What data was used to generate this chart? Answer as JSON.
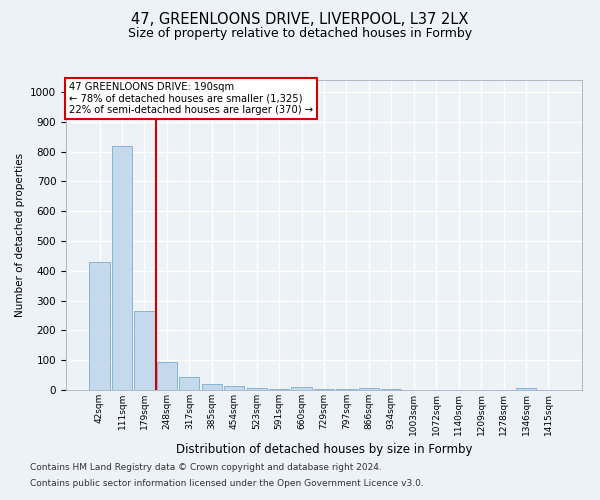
{
  "title_line1": "47, GREENLOONS DRIVE, LIVERPOOL, L37 2LX",
  "title_line2": "Size of property relative to detached houses in Formby",
  "xlabel": "Distribution of detached houses by size in Formby",
  "ylabel": "Number of detached properties",
  "categories": [
    "42sqm",
    "111sqm",
    "179sqm",
    "248sqm",
    "317sqm",
    "385sqm",
    "454sqm",
    "523sqm",
    "591sqm",
    "660sqm",
    "729sqm",
    "797sqm",
    "866sqm",
    "934sqm",
    "1003sqm",
    "1072sqm",
    "1140sqm",
    "1209sqm",
    "1278sqm",
    "1346sqm",
    "1415sqm"
  ],
  "values": [
    430,
    820,
    265,
    93,
    45,
    20,
    14,
    8,
    2,
    10,
    3,
    3,
    8,
    2,
    1,
    0,
    0,
    0,
    0,
    8,
    0
  ],
  "bar_color": "#c5d9ed",
  "bar_edge_color": "#7aadd4",
  "property_line_x": 2,
  "annotation_text_line1": "47 GREENLOONS DRIVE: 190sqm",
  "annotation_text_line2": "← 78% of detached houses are smaller (1,325)",
  "annotation_text_line3": "22% of semi-detached houses are larger (370) →",
  "annotation_box_color": "#cc0000",
  "ylim": [
    0,
    1040
  ],
  "yticks": [
    0,
    100,
    200,
    300,
    400,
    500,
    600,
    700,
    800,
    900,
    1000
  ],
  "footer_line1": "Contains HM Land Registry data © Crown copyright and database right 2024.",
  "footer_line2": "Contains public sector information licensed under the Open Government Licence v3.0.",
  "background_color": "#edf2f7",
  "grid_color": "#ffffff"
}
